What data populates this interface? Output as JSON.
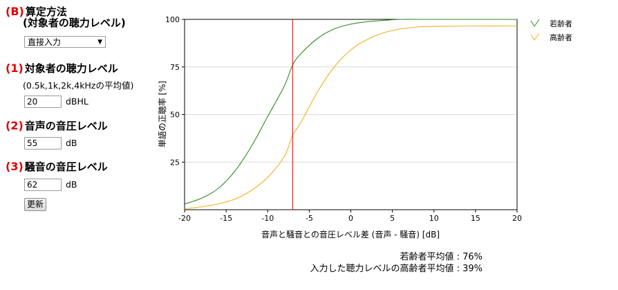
{
  "method": {
    "num": "(B)",
    "title_line1": "算定方法",
    "title_line2": "(対象者の聴力レベル)",
    "selected": "直接入力",
    "arrow": "▼"
  },
  "hearing": {
    "num": "(1)",
    "title": "対象者の聴力レベル",
    "note": "(0.5k,1k,2k,4kHzの平均値)",
    "value": "20",
    "unit": "dBHL"
  },
  "speech": {
    "num": "(2)",
    "title": "音声の音圧レベル",
    "value": "55",
    "unit": "dB"
  },
  "noise": {
    "num": "(3)",
    "title": "騒音の音圧レベル",
    "value": "62",
    "unit": "dB"
  },
  "update_button": "更新",
  "results": {
    "young": "若齢者平均値 : 76%",
    "elderly": "入力した聴力レベルの高齢者平均値 : 39%"
  },
  "colors": {
    "accent_red": "#e00000",
    "young": "#2e8b22",
    "elderly": "#f0b020",
    "marker": "#e00000"
  },
  "chart_data": {
    "type": "line",
    "xlabel": "音声と騒音との音圧レベル差 (音声 - 騒音) [dB]",
    "ylabel": "単語の正聴率 [%]",
    "xlim": [
      -20,
      20
    ],
    "ylim": [
      0,
      100
    ],
    "x_ticks": [
      "-20",
      "-15",
      "-10",
      "-5",
      "0",
      "5",
      "10",
      "15",
      "20"
    ],
    "y_ticks": [
      "25",
      "50",
      "75",
      "100"
    ],
    "grid": "horizontal",
    "legend_position": "top-right",
    "marker_x": -7,
    "series": [
      {
        "name": "若齢者",
        "color": "#2e8b22",
        "x": [
          -20,
          -18,
          -16,
          -14,
          -12,
          -10,
          -8,
          -7,
          -6,
          -4,
          -2,
          0,
          2,
          4,
          6,
          8,
          10,
          15,
          20
        ],
        "y": [
          3,
          6,
          11,
          20,
          33,
          49,
          65,
          76,
          82,
          90,
          95,
          97.5,
          98.8,
          99.5,
          100,
          100,
          100,
          100,
          100
        ]
      },
      {
        "name": "高齢者",
        "color": "#f0b020",
        "x": [
          -20,
          -18,
          -16,
          -14,
          -12,
          -10,
          -8,
          -7,
          -6,
          -4,
          -2,
          0,
          2,
          4,
          6,
          8,
          10,
          15,
          20
        ],
        "y": [
          0.5,
          1.5,
          3,
          5.5,
          10,
          17,
          28,
          39,
          46,
          62,
          75,
          84,
          89.5,
          93,
          95,
          96,
          96.3,
          96.5,
          96.5
        ]
      }
    ]
  }
}
